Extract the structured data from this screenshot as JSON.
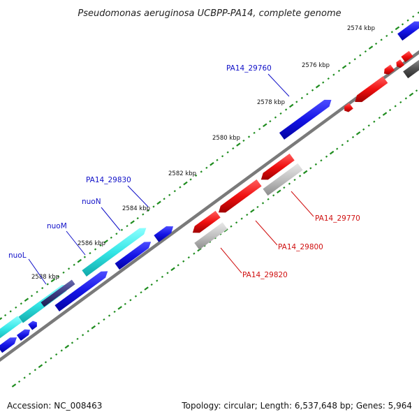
{
  "map": {
    "title": "Pseudomonas aeruginosa UCBPP-PA14, complete genome",
    "accession": "Accession: NC_008463",
    "summary": "Topology: circular; Length: 6,537,648 bp; Genes: 5,964",
    "colors": {
      "background": "#ffffff",
      "backbone": "#808080",
      "tick_major": "#1e8c1e",
      "tick_minor": "#1e8c1e",
      "forward_gene": "#1414e6",
      "forward_cds_highlight": "#33e6e6",
      "reverse_gene": "#f01010",
      "reverse_pseudo": "#c0c0c0",
      "dark_gene": "#505050",
      "forward_label": "#1010c8",
      "reverse_label": "#d01010"
    }
  },
  "ticks": [
    {
      "label": "2574 kbp"
    },
    {
      "label": "2576 kbp"
    },
    {
      "label": "2578 kbp"
    },
    {
      "label": "2580 kbp"
    },
    {
      "label": "2582 kbp"
    },
    {
      "label": "2584 kbp"
    },
    {
      "label": "2586 kbp"
    },
    {
      "label": "2588 kbp"
    }
  ],
  "forward_labels": [
    {
      "name": "PA14_29760"
    },
    {
      "name": "PA14_29830"
    },
    {
      "name": "nuoN"
    },
    {
      "name": "nuoM"
    },
    {
      "name": "nuoL"
    }
  ],
  "reverse_labels": [
    {
      "name": "PA14_29770"
    },
    {
      "name": "PA14_29800"
    },
    {
      "name": "PA14_29820"
    }
  ]
}
